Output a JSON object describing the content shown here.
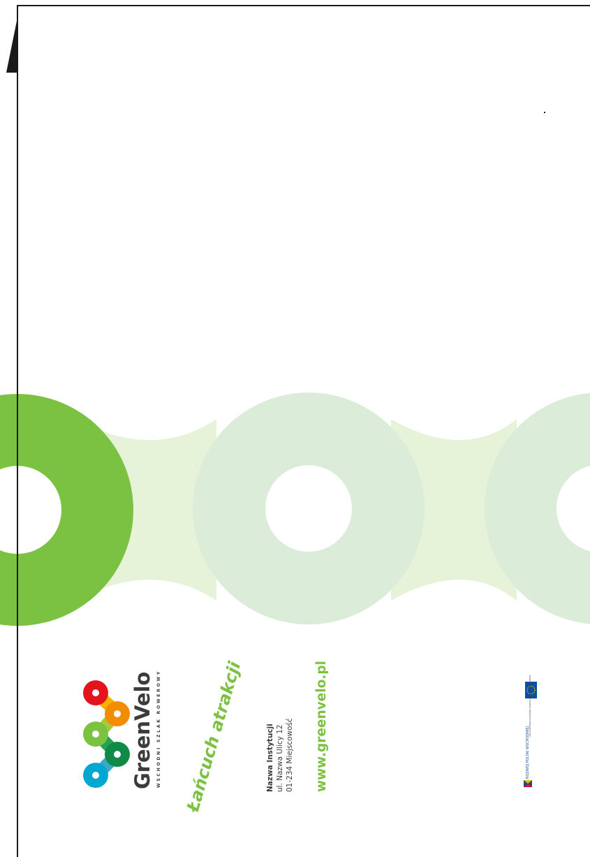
{
  "brand": {
    "name": "GreenVelo",
    "subtitle": "WSCHODNI SZLAK ROWEROWY"
  },
  "tagline": "Łańcuch atrakcji",
  "contact": {
    "institution": "Nazwa Instytucji",
    "street": "ul. Nazwa Ulicy 12",
    "city": "01-234 Miejscowość"
  },
  "website": "www.greenvelo.pl",
  "footer_logos": {
    "rozwoj": "ROZWÓJ POLSKI WSCHODNIEJ",
    "fund": "UNIA EUROPEJSKA EUROPEJSKI FUNDUSZ ROZWOJU REGIONALNEGO"
  },
  "colors": {
    "green": "#7cc242",
    "pale_green": "#dbecd9",
    "pale_lime": "#e6f3d9",
    "red": "#e3141b",
    "orange": "#f28c00",
    "yellow": "#f9b100",
    "dark_green": "#0f8a47",
    "cyan": "#00a8d1",
    "eu_blue": "#0b4ea2"
  }
}
